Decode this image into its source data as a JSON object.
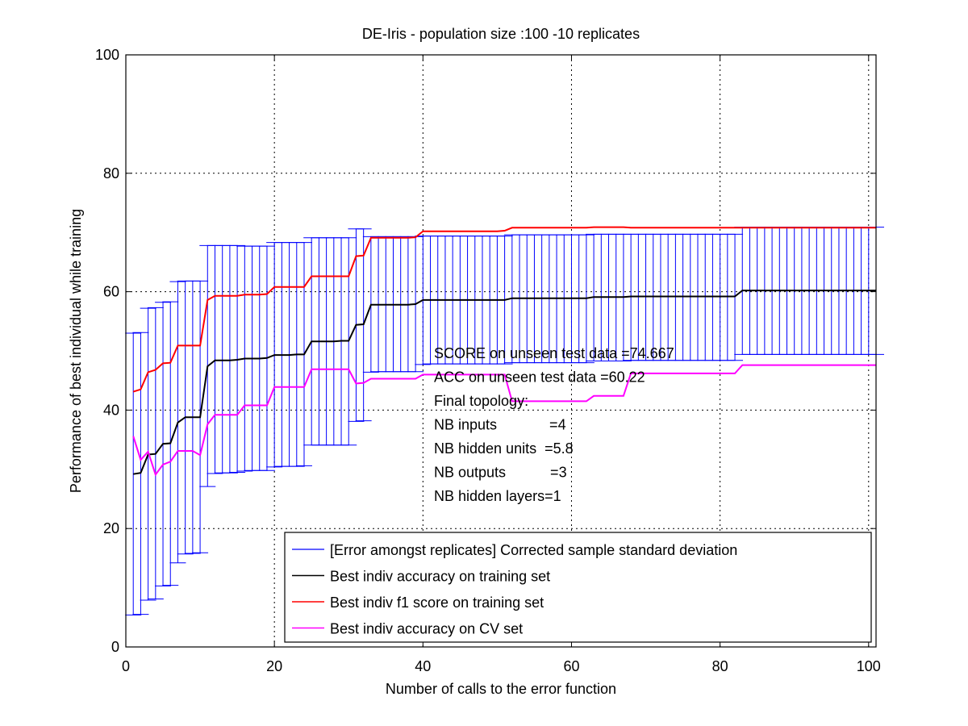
{
  "chart_data": {
    "type": "line",
    "title": "DE-Iris - population size :100 -10 replicates",
    "xlabel": "Number of calls to the error function",
    "ylabel": "Performance of best individual while training",
    "xlim": [
      0,
      101
    ],
    "ylim": [
      0,
      100
    ],
    "xticks": [
      0,
      20,
      40,
      60,
      80,
      100
    ],
    "yticks": [
      0,
      20,
      40,
      60,
      80,
      100
    ],
    "grid": true,
    "legend_position": "bottom-right",
    "x": [
      1,
      2,
      3,
      4,
      5,
      6,
      7,
      8,
      9,
      10,
      11,
      12,
      13,
      14,
      15,
      16,
      17,
      18,
      19,
      20,
      21,
      22,
      23,
      24,
      25,
      26,
      27,
      28,
      29,
      30,
      31,
      32,
      33,
      34,
      35,
      36,
      37,
      38,
      39,
      40,
      41,
      42,
      43,
      44,
      45,
      46,
      47,
      48,
      49,
      50,
      51,
      52,
      53,
      54,
      55,
      56,
      57,
      58,
      59,
      60,
      61,
      62,
      63,
      64,
      65,
      66,
      67,
      68,
      69,
      70,
      71,
      72,
      73,
      74,
      75,
      76,
      77,
      78,
      79,
      80,
      81,
      82,
      83,
      84,
      85,
      86,
      87,
      88,
      89,
      90,
      91,
      92,
      93,
      94,
      95,
      96,
      97,
      98,
      99,
      100,
      101
    ],
    "series": [
      {
        "name": "[Error amongst replicates] Corrected sample standard deviation",
        "kind": "errorbar",
        "color": "#0000ff",
        "mean": [
          29.2,
          29.4,
          32.5,
          32.6,
          34.3,
          34.4,
          37.9,
          38.8,
          38.8,
          38.8,
          47.4,
          48.4,
          48.4,
          48.4,
          48.5,
          48.7,
          48.7,
          48.7,
          48.8,
          49.3,
          49.3,
          49.3,
          49.4,
          49.4,
          51.6,
          51.6,
          51.6,
          51.6,
          51.7,
          51.7,
          54.4,
          54.5,
          57.8,
          57.8,
          57.8,
          57.8,
          57.8,
          57.8,
          57.9,
          58.6,
          58.6,
          58.6,
          58.6,
          58.6,
          58.6,
          58.6,
          58.6,
          58.6,
          58.6,
          58.6,
          58.6,
          58.9,
          58.9,
          58.9,
          58.9,
          58.9,
          58.9,
          58.9,
          58.9,
          58.9,
          58.9,
          58.9,
          59.1,
          59.1,
          59.1,
          59.1,
          59.1,
          59.2,
          59.2,
          59.2,
          59.2,
          59.2,
          59.2,
          59.2,
          59.2,
          59.2,
          59.2,
          59.2,
          59.2,
          59.2,
          59.2,
          59.2,
          60.2,
          60.2,
          60.2,
          60.2,
          60.2,
          60.2,
          60.2,
          60.2,
          60.2,
          60.2,
          60.2,
          60.2,
          60.2,
          60.2,
          60.2,
          60.2,
          60.2,
          60.2,
          60.2
        ],
        "lower": [
          5.4,
          5.5,
          7.9,
          8.1,
          10.3,
          10.4,
          14.2,
          15.7,
          15.8,
          15.9,
          27.1,
          29.3,
          29.4,
          29.4,
          29.5,
          29.7,
          29.8,
          29.8,
          29.8,
          30.4,
          30.5,
          30.5,
          30.5,
          30.6,
          34.1,
          34.1,
          34.1,
          34.1,
          34.1,
          34.1,
          38.1,
          38.2,
          46.4,
          46.5,
          46.5,
          46.5,
          46.5,
          46.5,
          46.5,
          47.7,
          47.8,
          47.8,
          47.8,
          47.8,
          47.8,
          47.8,
          47.8,
          47.8,
          47.8,
          47.8,
          47.8,
          48.0,
          48.0,
          48.0,
          48.0,
          48.0,
          48.0,
          48.0,
          48.0,
          48.0,
          48.0,
          48.0,
          48.3,
          48.3,
          48.3,
          48.3,
          48.3,
          48.4,
          48.4,
          48.4,
          48.4,
          48.4,
          48.4,
          48.4,
          48.4,
          48.4,
          48.4,
          48.4,
          48.4,
          48.4,
          48.4,
          48.4,
          49.4,
          49.4,
          49.4,
          49.4,
          49.4,
          49.4,
          49.4,
          49.4,
          49.4,
          49.4,
          49.4,
          49.4,
          49.4,
          49.4,
          49.4,
          49.4,
          49.4,
          49.4,
          49.4
        ],
        "upper": [
          53.0,
          53.1,
          57.2,
          57.3,
          58.2,
          58.3,
          61.7,
          61.8,
          61.8,
          61.8,
          67.8,
          67.8,
          67.8,
          67.8,
          67.8,
          67.7,
          67.7,
          67.7,
          67.7,
          68.3,
          68.3,
          68.3,
          68.3,
          68.3,
          69.1,
          69.1,
          69.1,
          69.1,
          69.1,
          69.1,
          70.6,
          70.6,
          69.3,
          69.3,
          69.3,
          69.3,
          69.3,
          69.3,
          69.3,
          69.4,
          69.4,
          69.4,
          69.4,
          69.4,
          69.4,
          69.4,
          69.4,
          69.4,
          69.4,
          69.4,
          69.4,
          69.6,
          69.6,
          69.6,
          69.6,
          69.6,
          69.6,
          69.6,
          69.6,
          69.6,
          69.6,
          69.6,
          69.7,
          69.7,
          69.7,
          69.7,
          69.7,
          69.7,
          69.7,
          69.7,
          69.7,
          69.7,
          69.7,
          69.7,
          69.7,
          69.7,
          69.7,
          69.7,
          69.7,
          69.7,
          69.7,
          69.7,
          70.9,
          70.9,
          70.9,
          70.9,
          70.9,
          70.9,
          70.9,
          70.9,
          70.9,
          70.9,
          70.9,
          70.9,
          70.9,
          70.9,
          70.9,
          70.9,
          70.9,
          70.9,
          70.9
        ]
      },
      {
        "name": "Best indiv accuracy on training set",
        "kind": "line",
        "color": "#000000",
        "values": [
          29.2,
          29.4,
          32.5,
          32.6,
          34.3,
          34.4,
          37.9,
          38.8,
          38.8,
          38.8,
          47.4,
          48.4,
          48.4,
          48.4,
          48.5,
          48.7,
          48.7,
          48.7,
          48.8,
          49.3,
          49.3,
          49.3,
          49.4,
          49.4,
          51.6,
          51.6,
          51.6,
          51.6,
          51.7,
          51.7,
          54.4,
          54.5,
          57.8,
          57.8,
          57.8,
          57.8,
          57.8,
          57.8,
          57.9,
          58.6,
          58.6,
          58.6,
          58.6,
          58.6,
          58.6,
          58.6,
          58.6,
          58.6,
          58.6,
          58.6,
          58.6,
          58.9,
          58.9,
          58.9,
          58.9,
          58.9,
          58.9,
          58.9,
          58.9,
          58.9,
          58.9,
          58.9,
          59.1,
          59.1,
          59.1,
          59.1,
          59.1,
          59.2,
          59.2,
          59.2,
          59.2,
          59.2,
          59.2,
          59.2,
          59.2,
          59.2,
          59.2,
          59.2,
          59.2,
          59.2,
          59.2,
          59.2,
          60.2,
          60.2,
          60.2,
          60.2,
          60.2,
          60.2,
          60.2,
          60.2,
          60.2,
          60.2,
          60.2,
          60.2,
          60.2,
          60.2,
          60.2,
          60.2,
          60.2,
          60.2,
          60.2
        ]
      },
      {
        "name": "Best indiv f1 score on training set",
        "kind": "line",
        "color": "#ff0000",
        "values": [
          43.1,
          43.5,
          46.4,
          46.8,
          47.9,
          48.0,
          50.9,
          50.9,
          50.9,
          50.9,
          58.6,
          59.3,
          59.3,
          59.3,
          59.3,
          59.5,
          59.5,
          59.5,
          59.6,
          60.8,
          60.8,
          60.8,
          60.8,
          60.8,
          62.6,
          62.6,
          62.6,
          62.6,
          62.6,
          62.6,
          66.0,
          66.1,
          69.1,
          69.1,
          69.1,
          69.1,
          69.1,
          69.1,
          69.2,
          70.2,
          70.2,
          70.2,
          70.2,
          70.2,
          70.2,
          70.2,
          70.2,
          70.2,
          70.2,
          70.2,
          70.3,
          70.8,
          70.8,
          70.8,
          70.8,
          70.8,
          70.8,
          70.8,
          70.8,
          70.8,
          70.8,
          70.8,
          70.9,
          70.9,
          70.9,
          70.9,
          70.9,
          70.8,
          70.8,
          70.8,
          70.8,
          70.8,
          70.8,
          70.8,
          70.8,
          70.8,
          70.8,
          70.8,
          70.8,
          70.8,
          70.8,
          70.8,
          70.8,
          70.8,
          70.8,
          70.8,
          70.8,
          70.8,
          70.8,
          70.8,
          70.8,
          70.8,
          70.8,
          70.8,
          70.8,
          70.8,
          70.8,
          70.8,
          70.8,
          70.8,
          70.8
        ]
      },
      {
        "name": "Best indiv accuracy on CV set",
        "kind": "line",
        "color": "#ff00ff",
        "values": [
          35.6,
          31.6,
          33.0,
          29.1,
          30.8,
          31.3,
          33.1,
          33.1,
          33.1,
          32.4,
          37.6,
          39.2,
          39.2,
          39.2,
          39.2,
          40.8,
          40.8,
          40.8,
          40.8,
          43.9,
          43.9,
          43.9,
          43.9,
          43.9,
          46.9,
          46.9,
          46.9,
          46.9,
          46.9,
          46.9,
          44.5,
          44.6,
          45.3,
          45.3,
          45.3,
          45.3,
          45.3,
          45.3,
          45.3,
          46.0,
          46.0,
          46.0,
          46.0,
          46.0,
          46.0,
          46.0,
          46.0,
          46.0,
          46.0,
          46.0,
          46.0,
          41.5,
          41.5,
          41.5,
          41.5,
          41.5,
          41.5,
          41.5,
          41.5,
          41.5,
          41.5,
          41.5,
          42.4,
          42.4,
          42.4,
          42.4,
          42.4,
          46.2,
          46.2,
          46.2,
          46.2,
          46.2,
          46.2,
          46.2,
          46.2,
          46.2,
          46.2,
          46.2,
          46.2,
          46.2,
          46.2,
          46.2,
          47.6,
          47.6,
          47.6,
          47.6,
          47.6,
          47.6,
          47.6,
          47.6,
          47.6,
          47.6,
          47.6,
          47.6,
          47.6,
          47.6,
          47.6,
          47.6,
          47.6,
          47.6,
          47.6
        ]
      }
    ],
    "annotations": [
      "SCORE on unseen test data =74.667",
      "ACC on unseen test data =60.22",
      "Final topology:",
      "NB inputs             =4",
      "NB hidden units  =5.8",
      "NB outputs           =3",
      "NB hidden layers=1"
    ]
  }
}
